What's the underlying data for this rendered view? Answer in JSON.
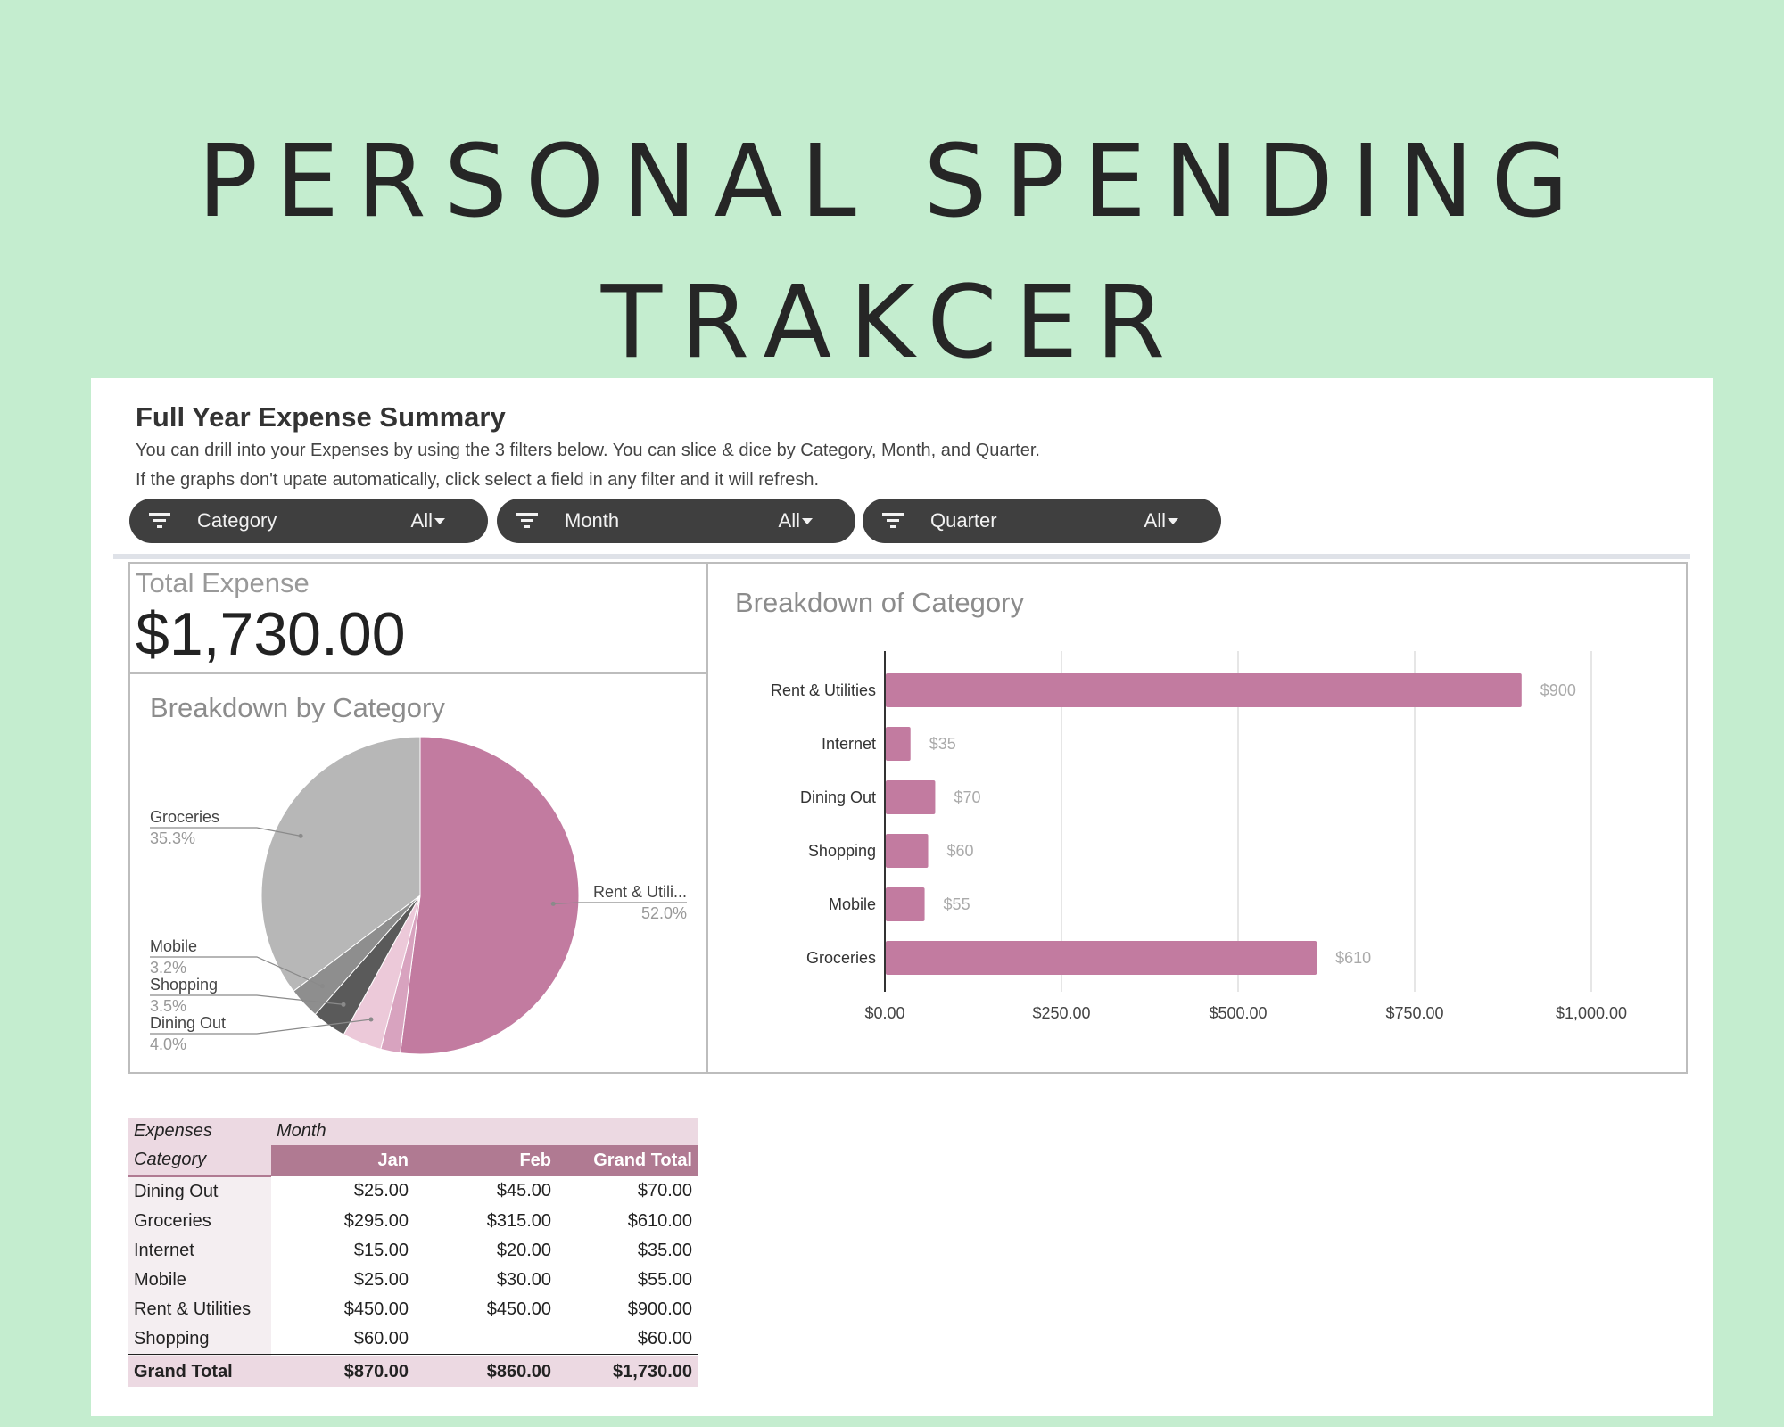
{
  "headline": {
    "line1": "PERSONAL SPENDING",
    "line2": "TRAKCER"
  },
  "sheet": {
    "title": "Full Year Expense Summary",
    "description_1": "You can drill into your Expenses by using the 3 filters below. You can slice & dice by Category, Month, and Quarter.",
    "description_2": "If the graphs don't upate automatically, click select a field in any filter and it will refresh."
  },
  "filters": [
    {
      "label": "Category",
      "value": "All",
      "icon": "filter-icon"
    },
    {
      "label": "Month",
      "value": "All",
      "icon": "filter-icon"
    },
    {
      "label": "Quarter",
      "value": "All",
      "icon": "filter-icon"
    }
  ],
  "kpi": {
    "label": "Total Expense",
    "value": "$1,730.00"
  },
  "colors": {
    "accent": "#c27ba0",
    "header": "#b07a92",
    "light": "#ecd9e2",
    "background": "#c4edcf"
  },
  "chart_data": [
    {
      "type": "pie",
      "title": "Breakdown by Category",
      "slices": [
        {
          "label": "Rent & Utili...",
          "value": 52.0,
          "pct_label": "52.0%",
          "color": "#c27ba0"
        },
        {
          "label": "",
          "value": 2.0,
          "pct_label": "",
          "color": "#d8a3bf"
        },
        {
          "label": "Dining Out",
          "value": 4.0,
          "pct_label": "4.0%",
          "color": "#ecc9d9"
        },
        {
          "label": "Shopping",
          "value": 3.5,
          "pct_label": "3.5%",
          "color": "#5a5a5a"
        },
        {
          "label": "Mobile",
          "value": 3.2,
          "pct_label": "3.2%",
          "color": "#8e8e8e"
        },
        {
          "label": "Groceries",
          "value": 35.3,
          "pct_label": "35.3%",
          "color": "#b7b7b7"
        }
      ]
    },
    {
      "type": "bar",
      "title": "Breakdown of Category",
      "categories": [
        "Rent & Utilities",
        "Internet",
        "Dining Out",
        "Shopping",
        "Mobile",
        "Groceries"
      ],
      "values": [
        900,
        35,
        70,
        60,
        55,
        610
      ],
      "value_labels": [
        "$900",
        "$35",
        "$70",
        "$60",
        "$55",
        "$610"
      ],
      "xlim": [
        0,
        1000
      ],
      "x_ticks": [
        0,
        250,
        500,
        750,
        1000
      ],
      "x_tick_labels": [
        "$0.00",
        "$250.00",
        "$500.00",
        "$750.00",
        "$1,000.00"
      ],
      "grid": true,
      "color": "#c27ba0"
    }
  ],
  "pivot": {
    "corner_label": "Expenses",
    "column_group_label": "Month",
    "row_header_label": "Category",
    "columns": [
      "Jan",
      "Feb",
      "Grand Total"
    ],
    "rows": [
      {
        "category": "Dining Out",
        "values": [
          "$25.00",
          "$45.00",
          "$70.00"
        ]
      },
      {
        "category": "Groceries",
        "values": [
          "$295.00",
          "$315.00",
          "$610.00"
        ]
      },
      {
        "category": "Internet",
        "values": [
          "$15.00",
          "$20.00",
          "$35.00"
        ]
      },
      {
        "category": "Mobile",
        "values": [
          "$25.00",
          "$30.00",
          "$55.00"
        ]
      },
      {
        "category": "Rent & Utilities",
        "values": [
          "$450.00",
          "$450.00",
          "$900.00"
        ]
      },
      {
        "category": "Shopping",
        "values": [
          "$60.00",
          "",
          "$60.00"
        ]
      }
    ],
    "total": {
      "label": "Grand Total",
      "values": [
        "$870.00",
        "$860.00",
        "$1,730.00"
      ]
    }
  }
}
